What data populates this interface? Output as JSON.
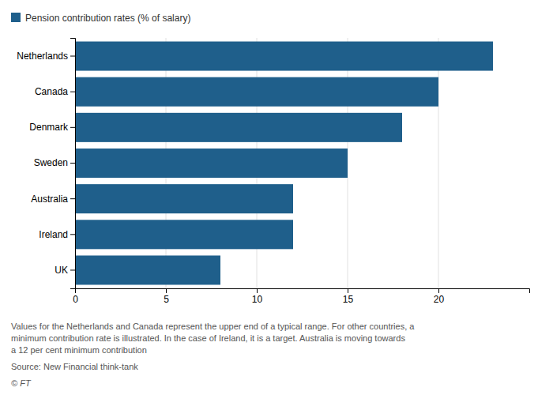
{
  "chart_data": {
    "type": "bar",
    "orientation": "horizontal",
    "categories": [
      "Netherlands",
      "Canada",
      "Denmark",
      "Sweden",
      "Australia",
      "Ireland",
      "UK"
    ],
    "series": [
      {
        "name": "Pension contribution rates (% of salary)",
        "color": "#1f5f8b",
        "values": [
          23,
          20,
          18,
          15,
          12,
          12,
          8
        ]
      }
    ],
    "xlim": [
      0,
      25
    ],
    "xticks": [
      0,
      5,
      10,
      15,
      20
    ],
    "grid": true,
    "legend": "upper left",
    "annotations": [
      "Values for the Netherlands and Canada represent the upper end of a typical range. For other countries, a",
      "minimum contribution rate is illustrated. In the case of Ireland, it is a target. Australia is moving towards",
      "a 12 per cent minimum contribution",
      "Source: New Financial think-tank",
      "© FT"
    ]
  }
}
